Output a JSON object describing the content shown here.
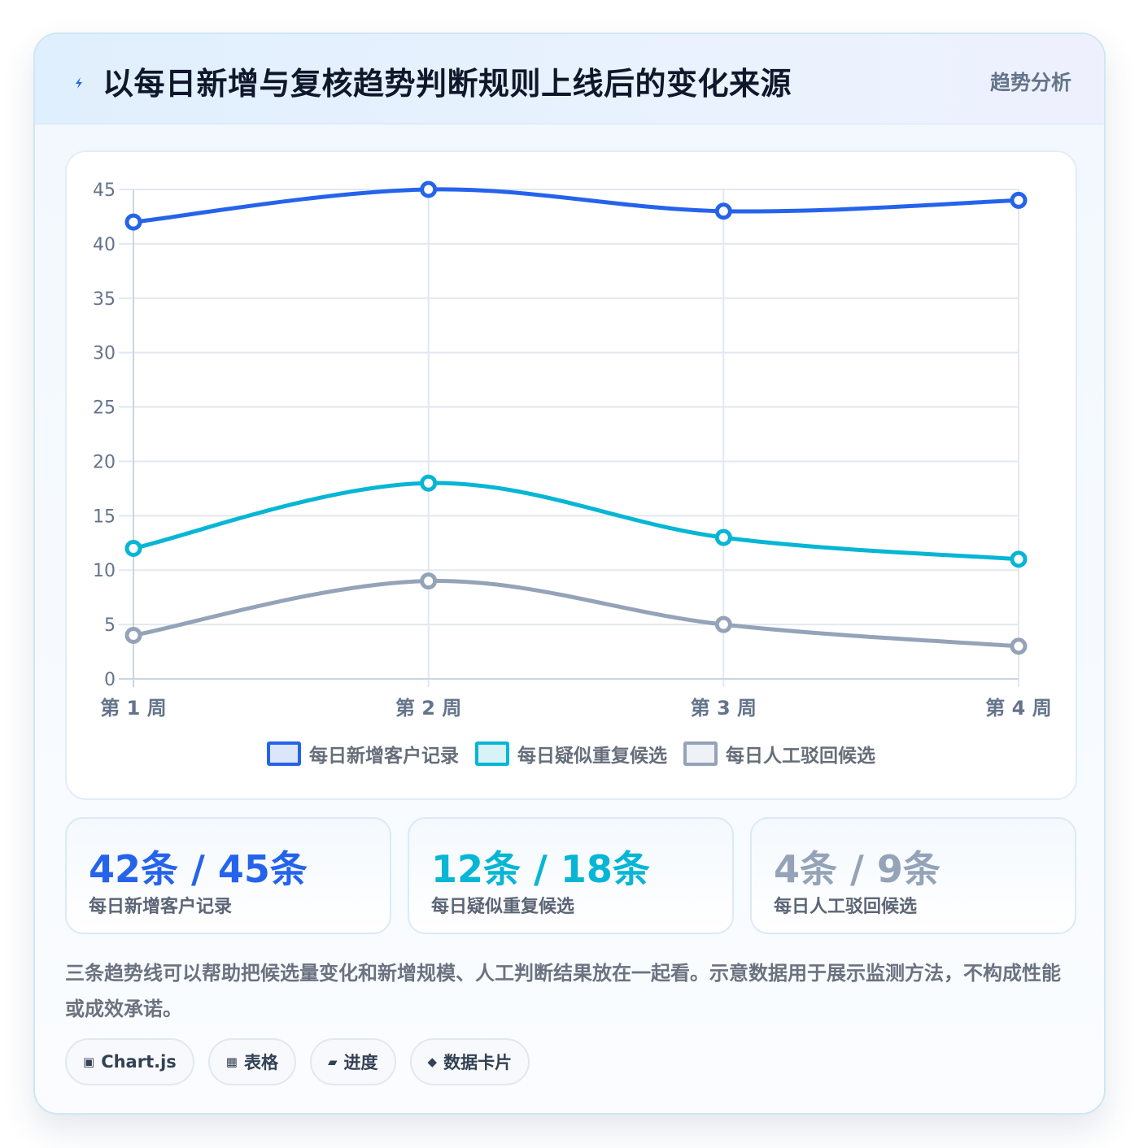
{
  "header": {
    "title": "以每日新增与复核趋势判断规则上线后的变化来源",
    "badge": "趋势分析",
    "icon": "bolt-icon"
  },
  "colors": {
    "series_1": "#2563eb",
    "series_2": "#06b6d4",
    "series_3": "#94a3b8",
    "grid": "#e2e8f0",
    "tick": "#64748b"
  },
  "chart_data": {
    "type": "line",
    "categories": [
      "第 1 周",
      "第 2 周",
      "第 3 周",
      "第 4 周"
    ],
    "y_ticks": [
      0,
      5,
      10,
      15,
      20,
      25,
      30,
      35,
      40,
      45
    ],
    "ylim": [
      0,
      45
    ],
    "grid": true,
    "legend_position": "bottom",
    "series": [
      {
        "name": "每日新增客户记录",
        "values": [
          42,
          45,
          43,
          44
        ],
        "color": "#2563eb"
      },
      {
        "name": "每日疑似重复候选",
        "values": [
          12,
          18,
          13,
          11
        ],
        "color": "#06b6d4"
      },
      {
        "name": "每日人工驳回候选",
        "values": [
          4,
          9,
          5,
          3
        ],
        "color": "#94a3b8"
      }
    ]
  },
  "stats": [
    {
      "value": "42条 / 45条",
      "label": "每日新增客户记录",
      "color": "#2563eb"
    },
    {
      "value": "12条 / 18条",
      "label": "每日疑似重复候选",
      "color": "#06b6d4"
    },
    {
      "value": "4条 / 9条",
      "label": "每日人工驳回候选",
      "color": "#94a3b8"
    }
  ],
  "note": "三条趋势线可以帮助把候选量变化和新增规模、人工判断结果放在一起看。示意数据用于展示监测方法，不构成性能或成效承诺。",
  "tags": [
    {
      "icon": "▣",
      "label": "Chart.js"
    },
    {
      "icon": "▦",
      "label": "表格"
    },
    {
      "icon": "▰",
      "label": "进度"
    },
    {
      "icon": "◆",
      "label": "数据卡片"
    }
  ]
}
